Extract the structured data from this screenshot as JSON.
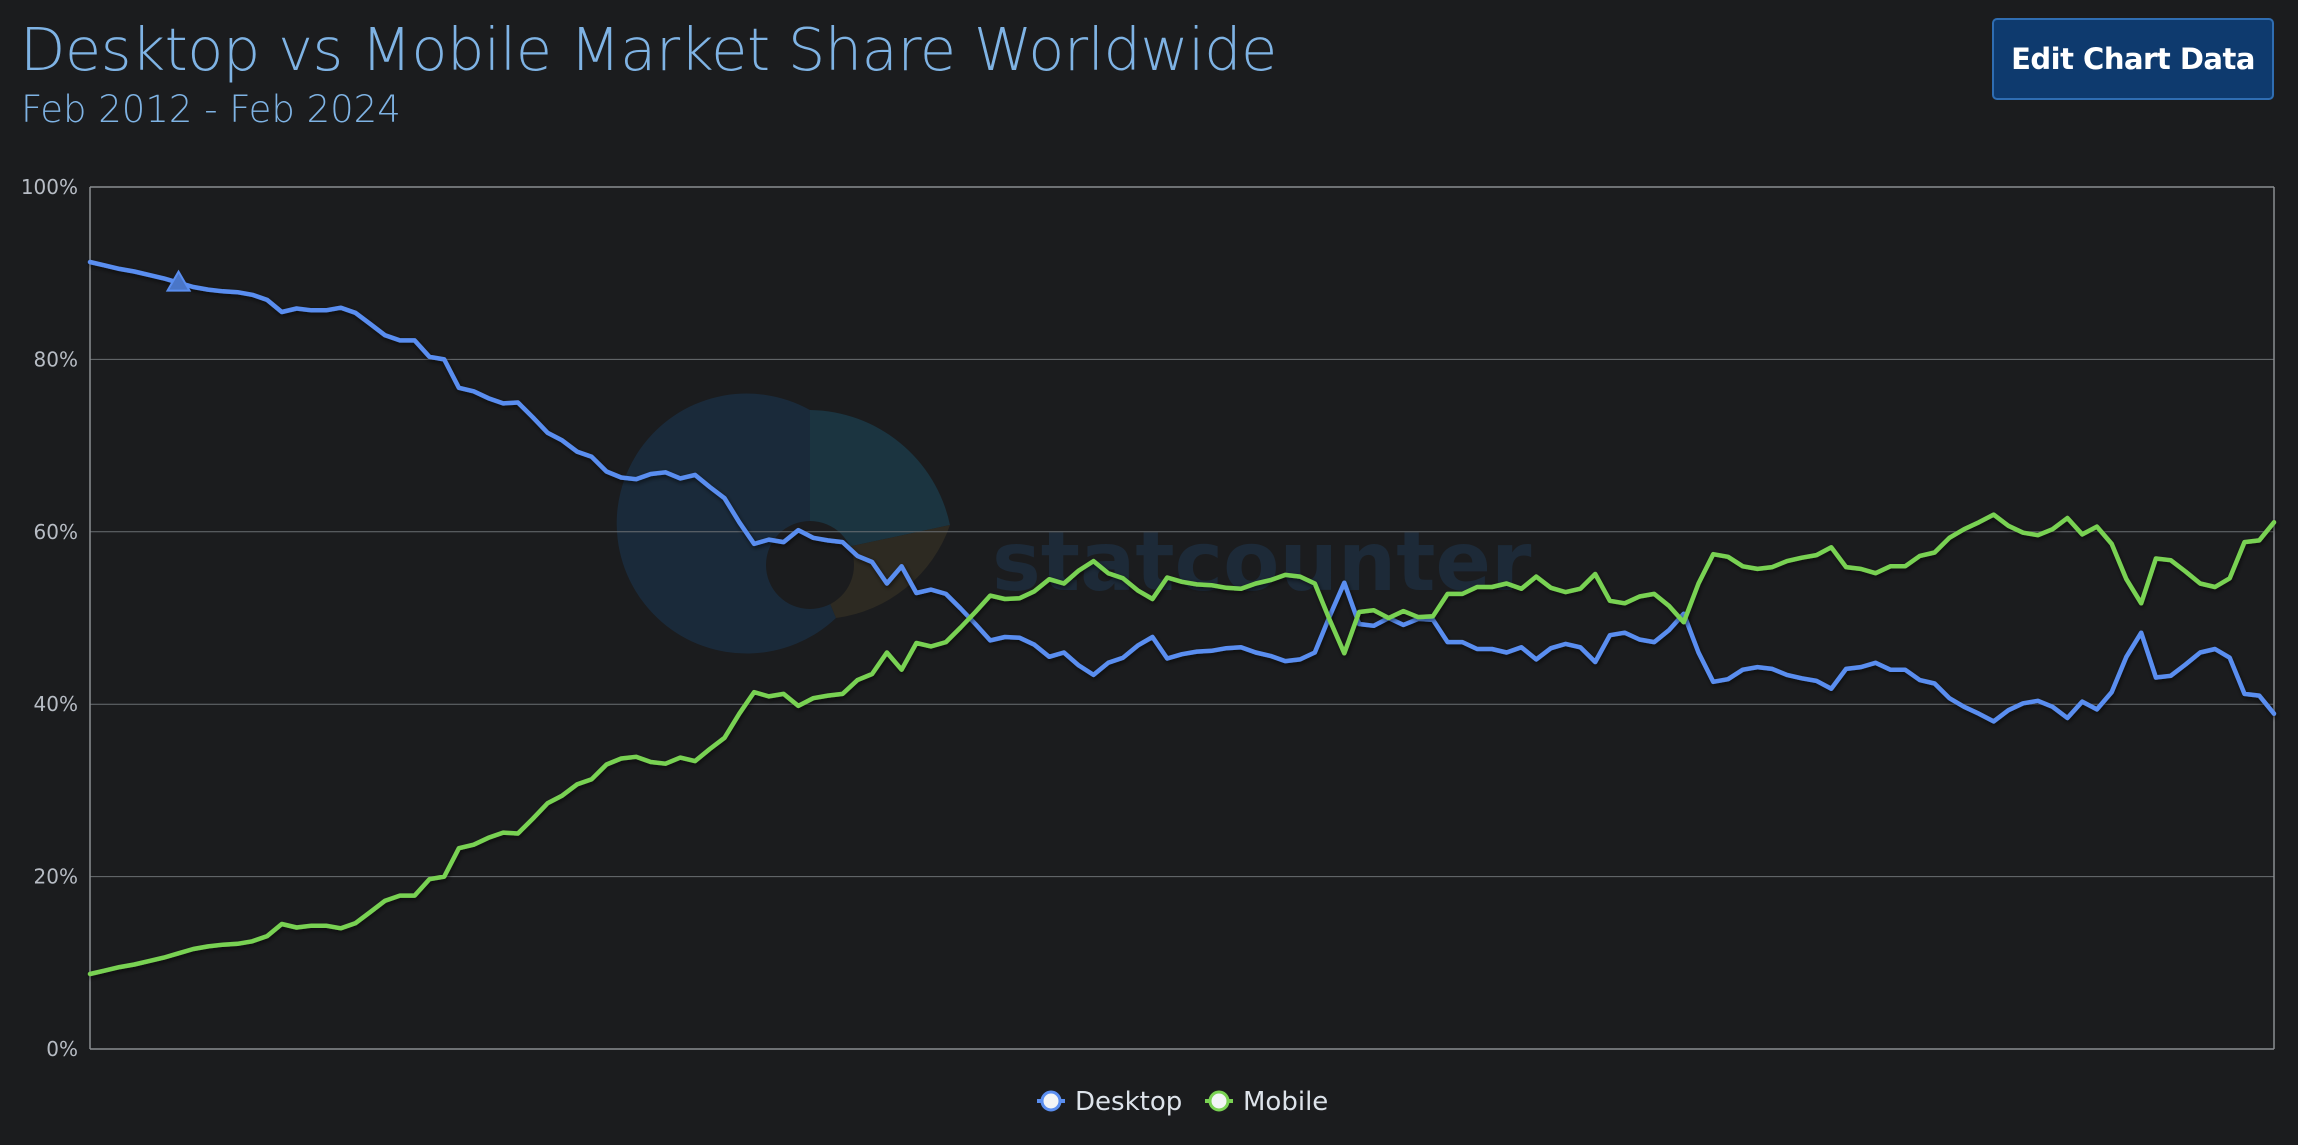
{
  "header": {
    "title": "Desktop vs Mobile Market Share Worldwide",
    "subtitle": "Feb 2012 - Feb 2024",
    "edit_button_label": "Edit Chart Data"
  },
  "watermark": {
    "text": "statcounter"
  },
  "colors": {
    "background": "#1b1c1e",
    "title": "#7fb3e4",
    "desktop": "#5a8ef0",
    "mobile": "#79d253",
    "grid": "#6b6e72",
    "button_bg": "#0e3a6e"
  },
  "chart_data": {
    "type": "line",
    "title": "Desktop vs Mobile Market Share Worldwide",
    "subtitle": "Feb 2012 - Feb 2024",
    "x_start": "2012-02",
    "x_end": "2024-02",
    "ylim": [
      0,
      100
    ],
    "y_ticks": [
      "0%",
      "20%",
      "40%",
      "60%",
      "80%",
      "100%"
    ],
    "y_tick_values": [
      0,
      20,
      40,
      60,
      80,
      100
    ],
    "grid": true,
    "legend_position": "bottom-center",
    "series": [
      {
        "name": "Desktop",
        "marker": "circle",
        "values": [
          91.3,
          90.9,
          90.5,
          90.2,
          89.8,
          89.4,
          88.9,
          88.4,
          88.1,
          87.9,
          87.8,
          87.5,
          86.9,
          85.5,
          85.9,
          85.7,
          85.7,
          86.0,
          85.4,
          84.1,
          82.8,
          82.2,
          82.2,
          80.3,
          80.0,
          76.7,
          76.3,
          75.5,
          74.9,
          75.0,
          73.3,
          71.5,
          70.6,
          69.3,
          68.7,
          67.0,
          66.3,
          66.1,
          66.7,
          66.9,
          66.2,
          66.6,
          65.2,
          63.9,
          61.1,
          58.6,
          59.1,
          58.8,
          60.2,
          59.3,
          59.0,
          58.8,
          57.2,
          56.5,
          54.0,
          56.0,
          52.9,
          53.3,
          52.8,
          51.1,
          49.3,
          47.4,
          47.8,
          47.7,
          46.9,
          45.5,
          46.0,
          44.5,
          43.4,
          44.8,
          45.4,
          46.8,
          47.8,
          45.3,
          45.8,
          46.1,
          46.2,
          46.5,
          46.6,
          46.0,
          45.6,
          45.0,
          45.2,
          46.0,
          50.2,
          54.1,
          49.3,
          49.1,
          50.0,
          49.2,
          49.9,
          49.8,
          47.2,
          47.2,
          46.4,
          46.4,
          46.0,
          46.6,
          45.2,
          46.5,
          47.0,
          46.6,
          44.9,
          48.0,
          48.3,
          47.5,
          47.2,
          48.6,
          50.5,
          46.0,
          42.6,
          42.9,
          44.0,
          44.3,
          44.1,
          43.4,
          43.0,
          42.7,
          41.8,
          44.1,
          44.3,
          44.8,
          44.0,
          44.0,
          42.8,
          42.4,
          40.7,
          39.7,
          38.9,
          38.0,
          39.3,
          40.1,
          40.4,
          39.7,
          38.4,
          40.3,
          39.4,
          41.4,
          45.5,
          48.3,
          43.1,
          43.3,
          44.6,
          46.0,
          46.4,
          45.4,
          41.2,
          41.0,
          38.9
        ]
      },
      {
        "name": "Mobile",
        "marker": "circle",
        "values": [
          8.7,
          9.1,
          9.5,
          9.8,
          10.2,
          10.6,
          11.1,
          11.6,
          11.9,
          12.1,
          12.2,
          12.5,
          13.1,
          14.5,
          14.1,
          14.3,
          14.3,
          14.0,
          14.6,
          15.9,
          17.2,
          17.8,
          17.8,
          19.7,
          20.0,
          23.3,
          23.7,
          24.5,
          25.1,
          25.0,
          26.7,
          28.5,
          29.4,
          30.7,
          31.3,
          33.0,
          33.7,
          33.9,
          33.3,
          33.1,
          33.8,
          33.4,
          34.8,
          36.1,
          38.9,
          41.4,
          40.9,
          41.2,
          39.8,
          40.7,
          41.0,
          41.2,
          42.8,
          43.5,
          46.0,
          44.0,
          47.1,
          46.7,
          47.2,
          48.9,
          50.7,
          52.6,
          52.2,
          52.3,
          53.1,
          54.5,
          54.0,
          55.5,
          56.6,
          55.2,
          54.6,
          53.2,
          52.2,
          54.7,
          54.2,
          53.9,
          53.8,
          53.5,
          53.4,
          54.0,
          54.4,
          55.0,
          54.8,
          54.0,
          49.8,
          45.9,
          50.7,
          50.9,
          50.0,
          50.8,
          50.1,
          50.2,
          52.8,
          52.8,
          53.6,
          53.6,
          54.0,
          53.4,
          54.8,
          53.5,
          53.0,
          53.4,
          55.1,
          52.0,
          51.7,
          52.5,
          52.8,
          51.4,
          49.5,
          54.0,
          57.4,
          57.1,
          56.0,
          55.7,
          55.9,
          56.6,
          57.0,
          57.3,
          58.2,
          55.9,
          55.7,
          55.2,
          56.0,
          56.0,
          57.2,
          57.6,
          59.3,
          60.3,
          61.1,
          62.0,
          60.7,
          59.9,
          59.6,
          60.3,
          61.6,
          59.7,
          60.6,
          58.6,
          54.5,
          51.7,
          56.9,
          56.7,
          55.4,
          54.0,
          53.6,
          54.6,
          58.8,
          59.0,
          61.1
        ]
      }
    ]
  }
}
